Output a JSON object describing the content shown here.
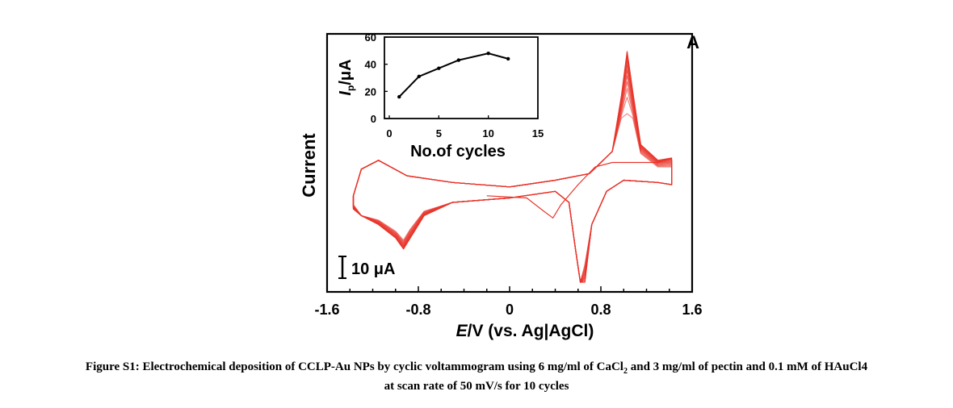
{
  "chart_data": [
    {
      "type": "line",
      "panel_label": "A",
      "xlabel_italic": "E",
      "xlabel_rest": "/V (vs. Ag|AgCl)",
      "ylabel": "Current",
      "xlim": [
        -1.6,
        1.6
      ],
      "xticks": [
        "-1.6",
        "-0.8",
        "0",
        "0.8",
        "1.6"
      ],
      "scale_bar": "10 μA",
      "series_color": "#e8352b",
      "cycles": 10,
      "features": {
        "anodic_peak": {
          "x": 1.05,
          "y_first_cycle": 32,
          "y_last_cycle": 60
        },
        "cathodic_peak": {
          "x": 0.62,
          "y": -44
        },
        "reduction_peak_negative": {
          "x": -0.93,
          "y_range": [
            -29,
            -25
          ]
        }
      }
    },
    {
      "type": "line",
      "xlabel": "No.of cycles",
      "ylabel_italic": "I",
      "ylabel_sub": "p",
      "ylabel_rest": "/μA",
      "xlim": [
        0,
        15
      ],
      "ylim": [
        0,
        60
      ],
      "xticks": [
        "0",
        "5",
        "10",
        "15"
      ],
      "yticks": [
        "0",
        "20",
        "40",
        "60"
      ],
      "series": [
        {
          "x": [
            1,
            3,
            5,
            7,
            10,
            12
          ],
          "values": [
            16,
            31,
            37,
            43,
            48,
            44
          ]
        }
      ]
    }
  ],
  "caption": {
    "line1_a": "Figure S1: Electrochemical deposition of CCLP-Au NPs by cyclic voltammogram using 6 mg/ml of CaCl",
    "line1_sub": "2",
    "line1_b": " and 3 mg/ml of pectin and 0.1 mM of HAuCl4",
    "line2": "at scan rate of 50 mV/s for 10 cycles"
  }
}
